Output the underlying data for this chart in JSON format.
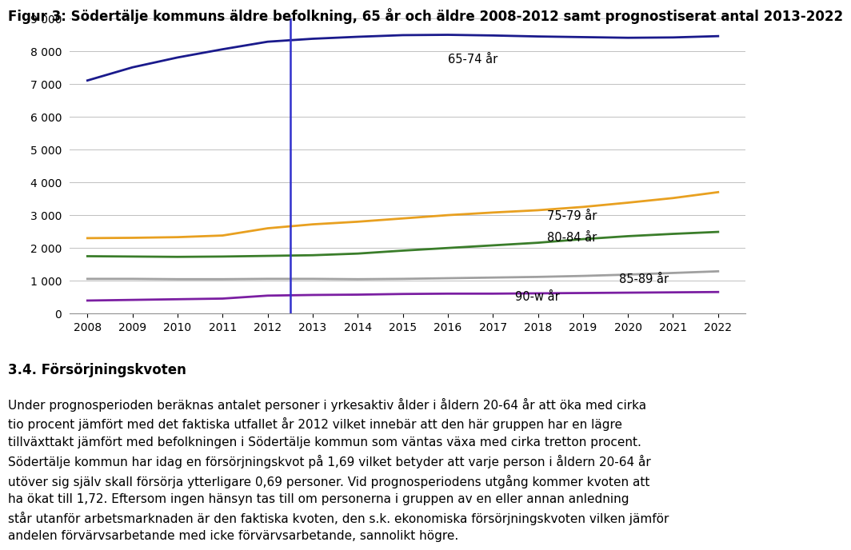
{
  "title": "Figur 3: Södertälje kommuns äldre befolkning, 65 år och äldre 2008-2012 samt prognostiserat antal 2013-2022",
  "years": [
    2008,
    2009,
    2010,
    2011,
    2012,
    2013,
    2014,
    2015,
    2016,
    2017,
    2018,
    2019,
    2020,
    2021,
    2022
  ],
  "series": [
    {
      "label": "65-74 år",
      "color": "#1a1a8c",
      "data": [
        7100,
        7500,
        7800,
        8050,
        8280,
        8370,
        8430,
        8480,
        8490,
        8470,
        8440,
        8420,
        8400,
        8410,
        8450
      ]
    },
    {
      "label": "75-79 år",
      "color": "#e8a020",
      "data": [
        2300,
        2310,
        2330,
        2380,
        2600,
        2720,
        2800,
        2900,
        3000,
        3080,
        3150,
        3250,
        3380,
        3520,
        3700
      ]
    },
    {
      "label": "80-84 år",
      "color": "#3a7d2a",
      "data": [
        1750,
        1740,
        1730,
        1740,
        1760,
        1780,
        1830,
        1920,
        2000,
        2080,
        2160,
        2270,
        2360,
        2430,
        2490
      ]
    },
    {
      "label": "85-89 år",
      "color": "#a0a0a0",
      "data": [
        1060,
        1060,
        1050,
        1050,
        1060,
        1060,
        1050,
        1060,
        1080,
        1100,
        1120,
        1150,
        1190,
        1240,
        1290
      ]
    },
    {
      "label": "90-w år",
      "color": "#7b1fa2",
      "data": [
        400,
        420,
        440,
        460,
        550,
        570,
        580,
        600,
        610,
        610,
        620,
        630,
        640,
        650,
        660
      ]
    }
  ],
  "series_label_xy": {
    "65-74 år": [
      2016.0,
      7750
    ],
    "75-79 år": [
      2018.2,
      2970
    ],
    "80-84 år": [
      2018.2,
      2310
    ],
    "85-89 år": [
      2019.8,
      1050
    ],
    "90-w år": [
      2017.5,
      510
    ]
  },
  "vline_x": 2012.5,
  "vline_color": "#3030cc",
  "ylim": [
    0,
    9000
  ],
  "yticks": [
    0,
    1000,
    2000,
    3000,
    4000,
    5000,
    6000,
    7000,
    8000,
    9000
  ],
  "xlim": [
    2007.6,
    2022.6
  ],
  "background_color": "#ffffff",
  "grid_color": "#c0c0c0",
  "title_fontsize": 12,
  "axis_fontsize": 10,
  "label_fontsize": 10.5,
  "heading": "3.4. Försörjningskvoten",
  "heading_fontsize": 12,
  "paragraph": "Under prognosperioden beräknas antalet personer i yrkesaktiv ålder i åldern 20-64 år att öka med cirka tio procent jämfört med det faktiska utfallet år 2012 vilket innebär att den här gruppen har en lägre tillväxttakt jämfört med befolkningen i Södertälje kommun som väntas växa med cirka tretton procent. Södertälje kommun har idag en försörjningskvot på 1,69 vilket betyder att varje person i åldern 20-64 år utöver sig själv skall försörja ytterligare 0,69 personer. Vid prognosperiodens utgång kommer kvoten att ha ökat till 1,72. Eftersom ingen hänsyn tas till om personerna i gruppen av en eller annan anledning står utanför arbetsmarknaden är den faktiska kvoten, den s.k. ekonomiska försörjningskvoten vilken jämför andelen förvärvsarbetande med icke förvärvsarbetande, sannolikt högre.",
  "paragraph_fontsize": 11
}
